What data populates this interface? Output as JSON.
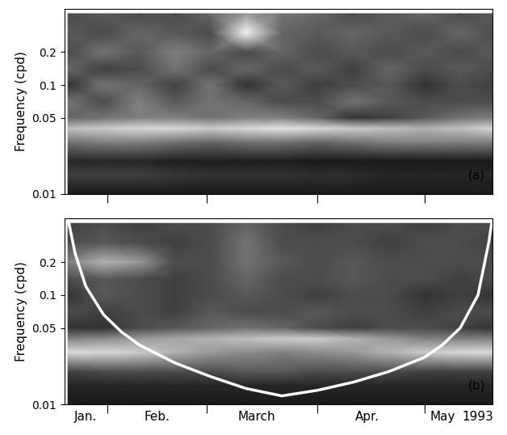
{
  "chart_data": [
    {
      "type": "heatmap",
      "ylabel": "Frequency (cpd)",
      "log": "y",
      "xlim": [
        19,
        139
      ],
      "ylim": [
        0.01,
        0.5
      ],
      "xticks": [
        31,
        59,
        90,
        120
      ],
      "yticks": [
        0.01,
        0.05,
        0.1,
        0.2
      ],
      "tick_labels": "y",
      "annotations": [
        {
          "x": 137,
          "y": 0.013,
          "text": "(a)"
        }
      ],
      "value_range": [
        0,
        1
      ],
      "x": [
        20,
        30,
        40,
        50,
        60,
        70,
        80,
        90,
        100,
        110,
        120,
        130,
        140
      ],
      "y": [
        0.01,
        0.015,
        0.02,
        0.03,
        0.04,
        0.05,
        0.07,
        0.1,
        0.14,
        0.2,
        0.3,
        0.45
      ],
      "cells": [
        [
          0.1,
          0.1,
          0.1,
          0.1,
          0.1,
          0.1,
          0.1,
          0.1,
          0.1,
          0.1,
          0.1,
          0.1,
          0.1
        ],
        [
          0.25,
          0.25,
          0.25,
          0.22,
          0.2,
          0.2,
          0.2,
          0.18,
          0.18,
          0.15,
          0.15,
          0.15,
          0.15
        ],
        [
          0.15,
          0.15,
          0.15,
          0.12,
          0.12,
          0.12,
          0.12,
          0.1,
          0.1,
          0.1,
          0.1,
          0.1,
          0.1
        ],
        [
          0.45,
          0.5,
          0.5,
          0.45,
          0.4,
          0.45,
          0.45,
          0.4,
          0.45,
          0.5,
          0.5,
          0.5,
          0.5
        ],
        [
          0.75,
          0.8,
          0.85,
          0.85,
          0.8,
          0.85,
          0.9,
          0.85,
          0.8,
          0.75,
          0.7,
          0.75,
          0.85
        ],
        [
          0.4,
          0.45,
          0.5,
          0.5,
          0.45,
          0.5,
          0.5,
          0.4,
          0.2,
          0.25,
          0.35,
          0.45,
          0.5
        ],
        [
          0.45,
          0.3,
          0.5,
          0.35,
          0.45,
          0.4,
          0.3,
          0.3,
          0.45,
          0.35,
          0.3,
          0.3,
          0.3
        ],
        [
          0.2,
          0.45,
          0.4,
          0.25,
          0.45,
          0.2,
          0.35,
          0.25,
          0.3,
          0.35,
          0.2,
          0.3,
          0.25
        ],
        [
          0.4,
          0.25,
          0.3,
          0.45,
          0.3,
          0.4,
          0.3,
          0.35,
          0.25,
          0.4,
          0.3,
          0.35,
          0.3
        ],
        [
          0.3,
          0.45,
          0.35,
          0.5,
          0.4,
          0.3,
          0.4,
          0.3,
          0.35,
          0.3,
          0.35,
          0.3,
          0.35
        ],
        [
          0.35,
          0.3,
          0.4,
          0.35,
          0.3,
          0.95,
          0.4,
          0.35,
          0.4,
          0.35,
          0.3,
          0.4,
          0.3
        ],
        [
          0.3,
          0.35,
          0.3,
          0.3,
          0.4,
          0.6,
          0.45,
          0.4,
          0.3,
          0.35,
          0.4,
          0.3,
          0.35
        ]
      ]
    },
    {
      "type": "heatmap",
      "ylabel": "Frequency (cpd)",
      "log": "y",
      "xlim": [
        19,
        139
      ],
      "ylim": [
        0.01,
        0.5
      ],
      "xticks": [
        31,
        59,
        90,
        120
      ],
      "yticks": [
        0.01,
        0.05,
        0.1,
        0.2
      ],
      "tick_labels": "y",
      "annotations": [
        {
          "x": 137,
          "y": 0.013,
          "text": "(b)"
        }
      ],
      "month_labels": [
        {
          "x": 25,
          "text": "Jan."
        },
        {
          "x": 45,
          "text": "Feb."
        },
        {
          "x": 73,
          "text": "March"
        },
        {
          "x": 104,
          "text": "Apr."
        },
        {
          "x": 125,
          "text": "May"
        },
        {
          "x": 135,
          "text": "1993"
        }
      ],
      "value_range": [
        0,
        1
      ],
      "x": [
        20,
        30,
        40,
        50,
        60,
        70,
        80,
        90,
        100,
        110,
        120,
        130,
        140
      ],
      "y": [
        0.01,
        0.015,
        0.02,
        0.03,
        0.04,
        0.05,
        0.07,
        0.1,
        0.14,
        0.2,
        0.3,
        0.45
      ],
      "cells": [
        [
          0.1,
          0.1,
          0.1,
          0.1,
          0.1,
          0.1,
          0.1,
          0.1,
          0.1,
          0.1,
          0.1,
          0.1,
          0.1
        ],
        [
          0.15,
          0.15,
          0.15,
          0.15,
          0.15,
          0.15,
          0.15,
          0.15,
          0.15,
          0.15,
          0.15,
          0.15,
          0.15
        ],
        [
          0.25,
          0.3,
          0.3,
          0.3,
          0.3,
          0.35,
          0.35,
          0.3,
          0.3,
          0.3,
          0.25,
          0.25,
          0.25
        ],
        [
          0.85,
          0.85,
          0.8,
          0.7,
          0.6,
          0.55,
          0.5,
          0.55,
          0.6,
          0.7,
          0.8,
          0.85,
          0.85
        ],
        [
          0.5,
          0.55,
          0.6,
          0.65,
          0.7,
          0.75,
          0.8,
          0.8,
          0.7,
          0.6,
          0.5,
          0.5,
          0.5
        ],
        [
          0.2,
          0.2,
          0.3,
          0.35,
          0.4,
          0.45,
          0.4,
          0.3,
          0.25,
          0.3,
          0.3,
          0.25,
          0.2
        ],
        [
          0.3,
          0.25,
          0.3,
          0.25,
          0.35,
          0.3,
          0.3,
          0.35,
          0.3,
          0.3,
          0.25,
          0.3,
          0.3
        ],
        [
          0.2,
          0.35,
          0.3,
          0.25,
          0.3,
          0.35,
          0.3,
          0.25,
          0.3,
          0.3,
          0.2,
          0.25,
          0.2
        ],
        [
          0.3,
          0.35,
          0.3,
          0.25,
          0.3,
          0.4,
          0.3,
          0.3,
          0.35,
          0.3,
          0.3,
          0.25,
          0.3
        ],
        [
          0.5,
          0.7,
          0.6,
          0.3,
          0.3,
          0.45,
          0.35,
          0.3,
          0.35,
          0.3,
          0.3,
          0.3,
          0.3
        ],
        [
          0.3,
          0.35,
          0.3,
          0.25,
          0.3,
          0.45,
          0.3,
          0.3,
          0.3,
          0.25,
          0.3,
          0.3,
          0.25
        ],
        [
          0.25,
          0.3,
          0.25,
          0.3,
          0.3,
          0.4,
          0.3,
          0.25,
          0.3,
          0.3,
          0.25,
          0.3,
          0.3
        ]
      ],
      "series": [
        {
          "type": "line",
          "color": "#ffffff",
          "x": [
            20,
            22,
            25,
            30,
            35,
            40,
            50,
            60,
            70,
            80,
            90,
            100,
            110,
            120,
            125,
            130,
            135,
            138,
            139
          ],
          "values": [
            0.5,
            0.24,
            0.12,
            0.066,
            0.046,
            0.035,
            0.024,
            0.018,
            0.014,
            0.012,
            0.0135,
            0.016,
            0.02,
            0.027,
            0.035,
            0.05,
            0.1,
            0.3,
            0.5
          ]
        }
      ]
    }
  ]
}
